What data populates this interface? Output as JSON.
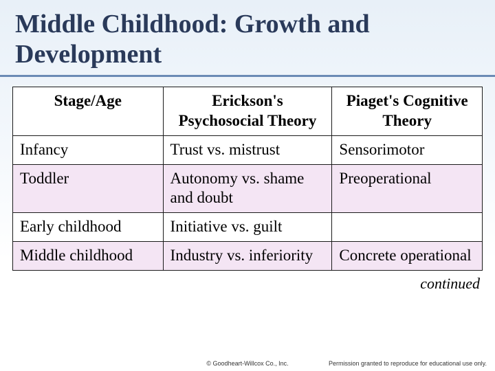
{
  "title": "Middle Childhood: Growth and Development",
  "table": {
    "columns": [
      "Stage/Age",
      "Erickson's Psychosocial Theory",
      "Piaget's Cognitive Theory"
    ],
    "rows": [
      {
        "cells": [
          "Infancy",
          "Trust vs. mistrust",
          "Sensorimotor"
        ],
        "shaded": false
      },
      {
        "cells": [
          "Toddler",
          "Autonomy vs. shame and doubt",
          "Preoperational"
        ],
        "shaded": true
      },
      {
        "cells": [
          "Early childhood",
          "Initiative vs. guilt",
          ""
        ],
        "shaded": false
      },
      {
        "cells": [
          "Middle childhood",
          "Industry vs. inferiority",
          "Concrete operational"
        ],
        "shaded": true
      }
    ]
  },
  "continued_label": "continued",
  "footer": {
    "copyright": "© Goodheart-Willcox Co., Inc.",
    "permission": "Permission granted to reproduce for educational use only."
  },
  "colors": {
    "title_text": "#2a3a5a",
    "underline": "#6b8ab5",
    "border": "#1a1a1a",
    "shaded_row": "#f4e5f4",
    "bg_top": "#e8f0f8",
    "bg_bottom": "#ffffff"
  }
}
